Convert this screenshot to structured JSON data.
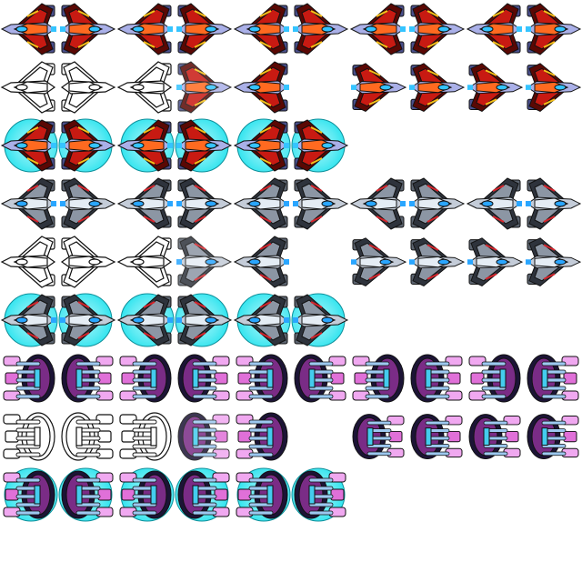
{
  "sheet": {
    "background": "#ffffff",
    "columns": 10,
    "rows": 10,
    "ships": [
      {
        "name": "red-fighter",
        "palette": {
          "hull": "#c81a12",
          "hull_dark": "#5a0804",
          "hull_light": "#ff6a20",
          "armor": "#4a4f8c",
          "armor_light": "#aab0e8",
          "cockpit": "#35c4ff",
          "accent": "#f4c21a",
          "outline": "#111111"
        },
        "rows": [
          {
            "kind": "normal",
            "frames": [
              "normal",
              "normal",
              "normal",
              "normal",
              "normal",
              "normal",
              "normal",
              "normal",
              "normal",
              "normal"
            ]
          },
          {
            "kind": "outline",
            "frames": [
              "outline-0",
              "outline-1",
              "outline-2",
              "outline-3",
              "outline-4",
              "empty",
              "bank",
              "bank",
              "bank",
              "bank"
            ]
          },
          {
            "kind": "shield",
            "frames": [
              "shield",
              "shield",
              "shield",
              "shield",
              "shield",
              "shield",
              "empty",
              "empty",
              "empty",
              "empty"
            ]
          }
        ]
      },
      {
        "name": "silver-fighter",
        "palette": {
          "hull": "#8c96a4",
          "hull_dark": "#2e333c",
          "hull_light": "#e4ecf4",
          "armor": "#5c6470",
          "armor_light": "#c4ccd8",
          "cockpit": "#2aa6ff",
          "accent": "#d8232a",
          "outline": "#111111"
        },
        "rows": [
          {
            "kind": "normal",
            "frames": [
              "normal",
              "normal",
              "normal",
              "normal",
              "normal",
              "normal",
              "normal",
              "normal",
              "normal",
              "normal"
            ]
          },
          {
            "kind": "outline",
            "frames": [
              "outline-0",
              "outline-1",
              "outline-2",
              "outline-3",
              "outline-4",
              "empty",
              "bank",
              "bank",
              "bank",
              "bank"
            ]
          },
          {
            "kind": "shield",
            "frames": [
              "shield",
              "shield",
              "shield",
              "shield",
              "shield",
              "shield",
              "empty",
              "empty",
              "empty",
              "empty"
            ]
          }
        ]
      },
      {
        "name": "purple-pod",
        "palette": {
          "hull": "#7a2c86",
          "hull_dark": "#1c1436",
          "hull_light": "#f0a8f0",
          "armor": "#3e5aa8",
          "armor_light": "#9cc8f0",
          "cockpit": "#44ccee",
          "accent": "#e070d8",
          "outline": "#111111"
        },
        "rows": [
          {
            "kind": "normal",
            "frames": [
              "normal",
              "normal",
              "normal",
              "normal",
              "normal",
              "normal",
              "normal",
              "normal",
              "normal",
              "normal"
            ]
          },
          {
            "kind": "outline",
            "frames": [
              "outline-0",
              "outline-1",
              "outline-2",
              "outline-3",
              "outline-4",
              "empty",
              "bank",
              "bank",
              "bank",
              "bank"
            ]
          },
          {
            "kind": "shield",
            "frames": [
              "shield",
              "shield",
              "shield",
              "shield",
              "shield",
              "shield",
              "empty",
              "empty",
              "empty",
              "empty"
            ]
          }
        ]
      }
    ],
    "shield_color": "#27e3ee",
    "shield_glow": "#b6fbff"
  }
}
